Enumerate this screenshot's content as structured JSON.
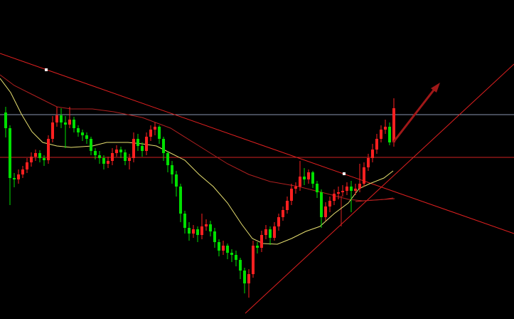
{
  "chart_data": {
    "type": "candlestick",
    "ylim": [
      0,
      448
    ],
    "up_color": "#ff2020",
    "down_color": "#00e000",
    "open": [
      290,
      268,
      198,
      196,
      203,
      210,
      220,
      228,
      233,
      226,
      223,
      253,
      276,
      286,
      276,
      273,
      280,
      268,
      262,
      258,
      253,
      236,
      230,
      226,
      218,
      222,
      233,
      238,
      234,
      222,
      226,
      253,
      243,
      236,
      256,
      266,
      270,
      253,
      233,
      216,
      203,
      186,
      148,
      128,
      120,
      126,
      118,
      130,
      133,
      123,
      108,
      96,
      103,
      93,
      90,
      83,
      68,
      50,
      63,
      103,
      100,
      118,
      126,
      114,
      130,
      143,
      153,
      166,
      183,
      186,
      200,
      196,
      206,
      190,
      178,
      143,
      158,
      166,
      176,
      178,
      180,
      186,
      180,
      183,
      190,
      213,
      226,
      238,
      253,
      266,
      270,
      248
    ],
    "high": [
      298,
      272,
      205,
      210,
      215,
      226,
      234,
      238,
      237,
      230,
      258,
      285,
      298,
      296,
      285,
      298,
      284,
      272,
      266,
      262,
      256,
      240,
      236,
      230,
      228,
      240,
      244,
      242,
      238,
      232,
      262,
      260,
      248,
      262,
      272,
      276,
      272,
      256,
      236,
      222,
      208,
      190,
      152,
      136,
      132,
      130,
      148,
      140,
      138,
      128,
      112,
      110,
      106,
      98,
      96,
      86,
      72,
      70,
      110,
      108,
      124,
      132,
      130,
      136,
      148,
      158,
      172,
      190,
      192,
      222,
      212,
      210,
      208,
      194,
      182,
      164,
      172,
      182,
      186,
      188,
      192,
      194,
      190,
      218,
      220,
      232,
      246,
      260,
      272,
      280,
      276,
      310
    ],
    "low": [
      255,
      160,
      185,
      190,
      198,
      205,
      214,
      222,
      220,
      215,
      218,
      248,
      270,
      268,
      240,
      268,
      262,
      256,
      250,
      246,
      230,
      224,
      218,
      210,
      212,
      216,
      228,
      226,
      216,
      210,
      220,
      236,
      228,
      230,
      250,
      258,
      246,
      222,
      206,
      190,
      172,
      136,
      120,
      110,
      114,
      108,
      112,
      124,
      116,
      100,
      88,
      90,
      84,
      80,
      74,
      56,
      36,
      30,
      58,
      92,
      94,
      112,
      104,
      110,
      124,
      138,
      148,
      160,
      176,
      180,
      188,
      190,
      184,
      170,
      128,
      138,
      150,
      160,
      168,
      172,
      174,
      150,
      174,
      178,
      186,
      208,
      220,
      232,
      248,
      260,
      244,
      242
    ],
    "close": [
      268,
      198,
      196,
      203,
      210,
      220,
      228,
      233,
      226,
      223,
      253,
      276,
      286,
      276,
      273,
      280,
      268,
      262,
      258,
      253,
      236,
      230,
      226,
      218,
      222,
      233,
      238,
      234,
      222,
      226,
      253,
      243,
      236,
      256,
      266,
      270,
      253,
      233,
      216,
      203,
      186,
      148,
      128,
      120,
      126,
      118,
      130,
      133,
      123,
      108,
      96,
      103,
      93,
      90,
      83,
      68,
      50,
      63,
      103,
      100,
      118,
      126,
      114,
      130,
      143,
      153,
      166,
      183,
      186,
      200,
      196,
      206,
      190,
      178,
      143,
      158,
      166,
      176,
      178,
      180,
      186,
      180,
      183,
      190,
      213,
      226,
      238,
      253,
      266,
      270,
      248,
      296
    ]
  }
}
